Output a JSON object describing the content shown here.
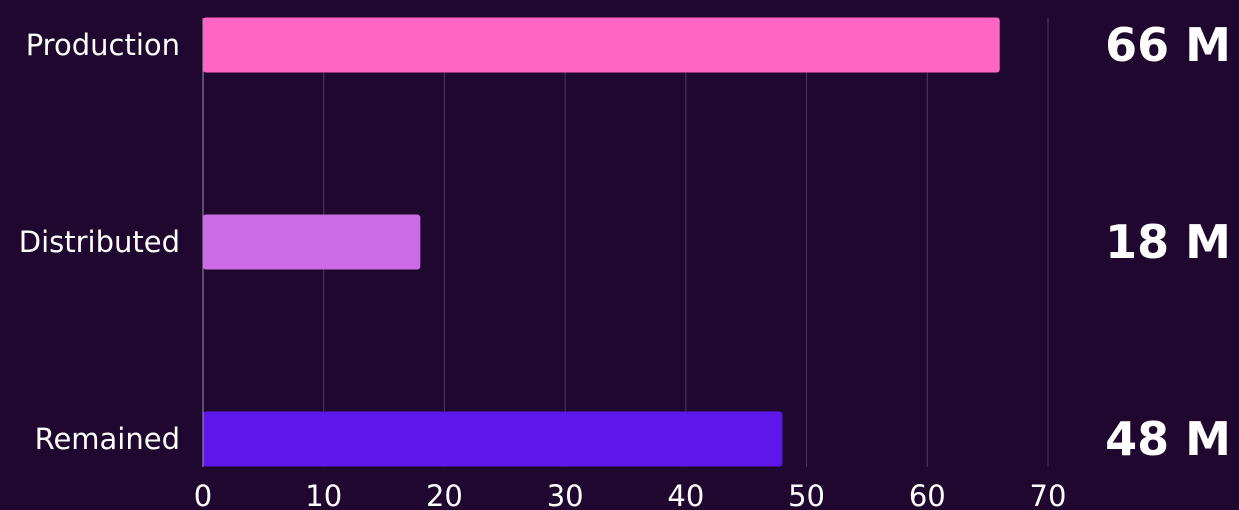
{
  "colors": {
    "background": "#20072f",
    "gridline": "#4a3a5a",
    "axis_line": "#a294ad",
    "text": "#ffffff"
  },
  "chart_data": {
    "type": "bar",
    "orientation": "horizontal",
    "categories": [
      "Production",
      "Distributed",
      "Remained"
    ],
    "values": [
      66,
      18,
      48
    ],
    "value_labels": [
      "66 M",
      "18 M",
      "48 M"
    ],
    "bar_colors": [
      "#ff66c4",
      "#cb6ce6",
      "#5e17eb"
    ],
    "xlim": [
      0,
      70
    ],
    "xticks": [
      "0",
      "10",
      "20",
      "30",
      "40",
      "50",
      "60",
      "70"
    ],
    "grid": true,
    "legend": "none"
  }
}
